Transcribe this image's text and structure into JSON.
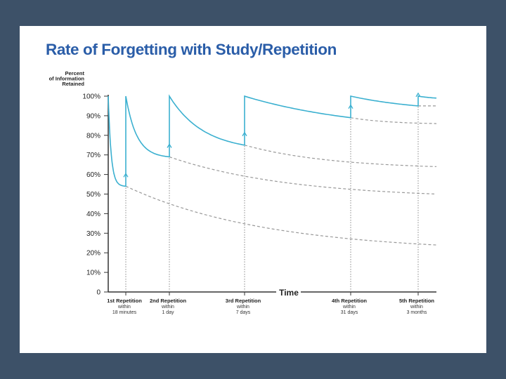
{
  "chart_data": {
    "type": "line",
    "title": "Rate of Forgetting with Study/Repetition",
    "ylabel": [
      "Percent",
      "of Information",
      "Retained"
    ],
    "xlabel": "Time",
    "ylim": [
      0,
      100
    ],
    "y_ticks": [
      "0",
      "10%",
      "20%",
      "30%",
      "40%",
      "50%",
      "60%",
      "70%",
      "80%",
      "90%",
      "100%"
    ],
    "y_tick_values": [
      0,
      10,
      20,
      30,
      40,
      50,
      60,
      70,
      80,
      90,
      100
    ],
    "repetitions": [
      {
        "name": "1st Repetition",
        "within": "within",
        "when": "18 minutes"
      },
      {
        "name": "2nd Repetition",
        "within": "within",
        "when": "1 day"
      },
      {
        "name": "3rd Repetition",
        "within": "within",
        "when": "7 days"
      },
      {
        "name": "4th Repetition",
        "within": "within",
        "when": "31 days"
      },
      {
        "name": "5th Repetition",
        "within": "within",
        "when": "3 months"
      }
    ],
    "retained_curve": {
      "color": "#3bb0d0",
      "segments": [
        {
          "start": 100,
          "end": 54
        },
        {
          "start": 100,
          "end": 69
        },
        {
          "start": 100,
          "end": 75
        },
        {
          "start": 100,
          "end": 89
        },
        {
          "start": 100,
          "end": 95
        },
        {
          "start": 100,
          "end": 99
        }
      ]
    },
    "forgetting_curves_without_review": {
      "color": "#999999",
      "end_values": [
        24,
        50,
        64,
        86,
        95
      ]
    },
    "grid": false
  }
}
